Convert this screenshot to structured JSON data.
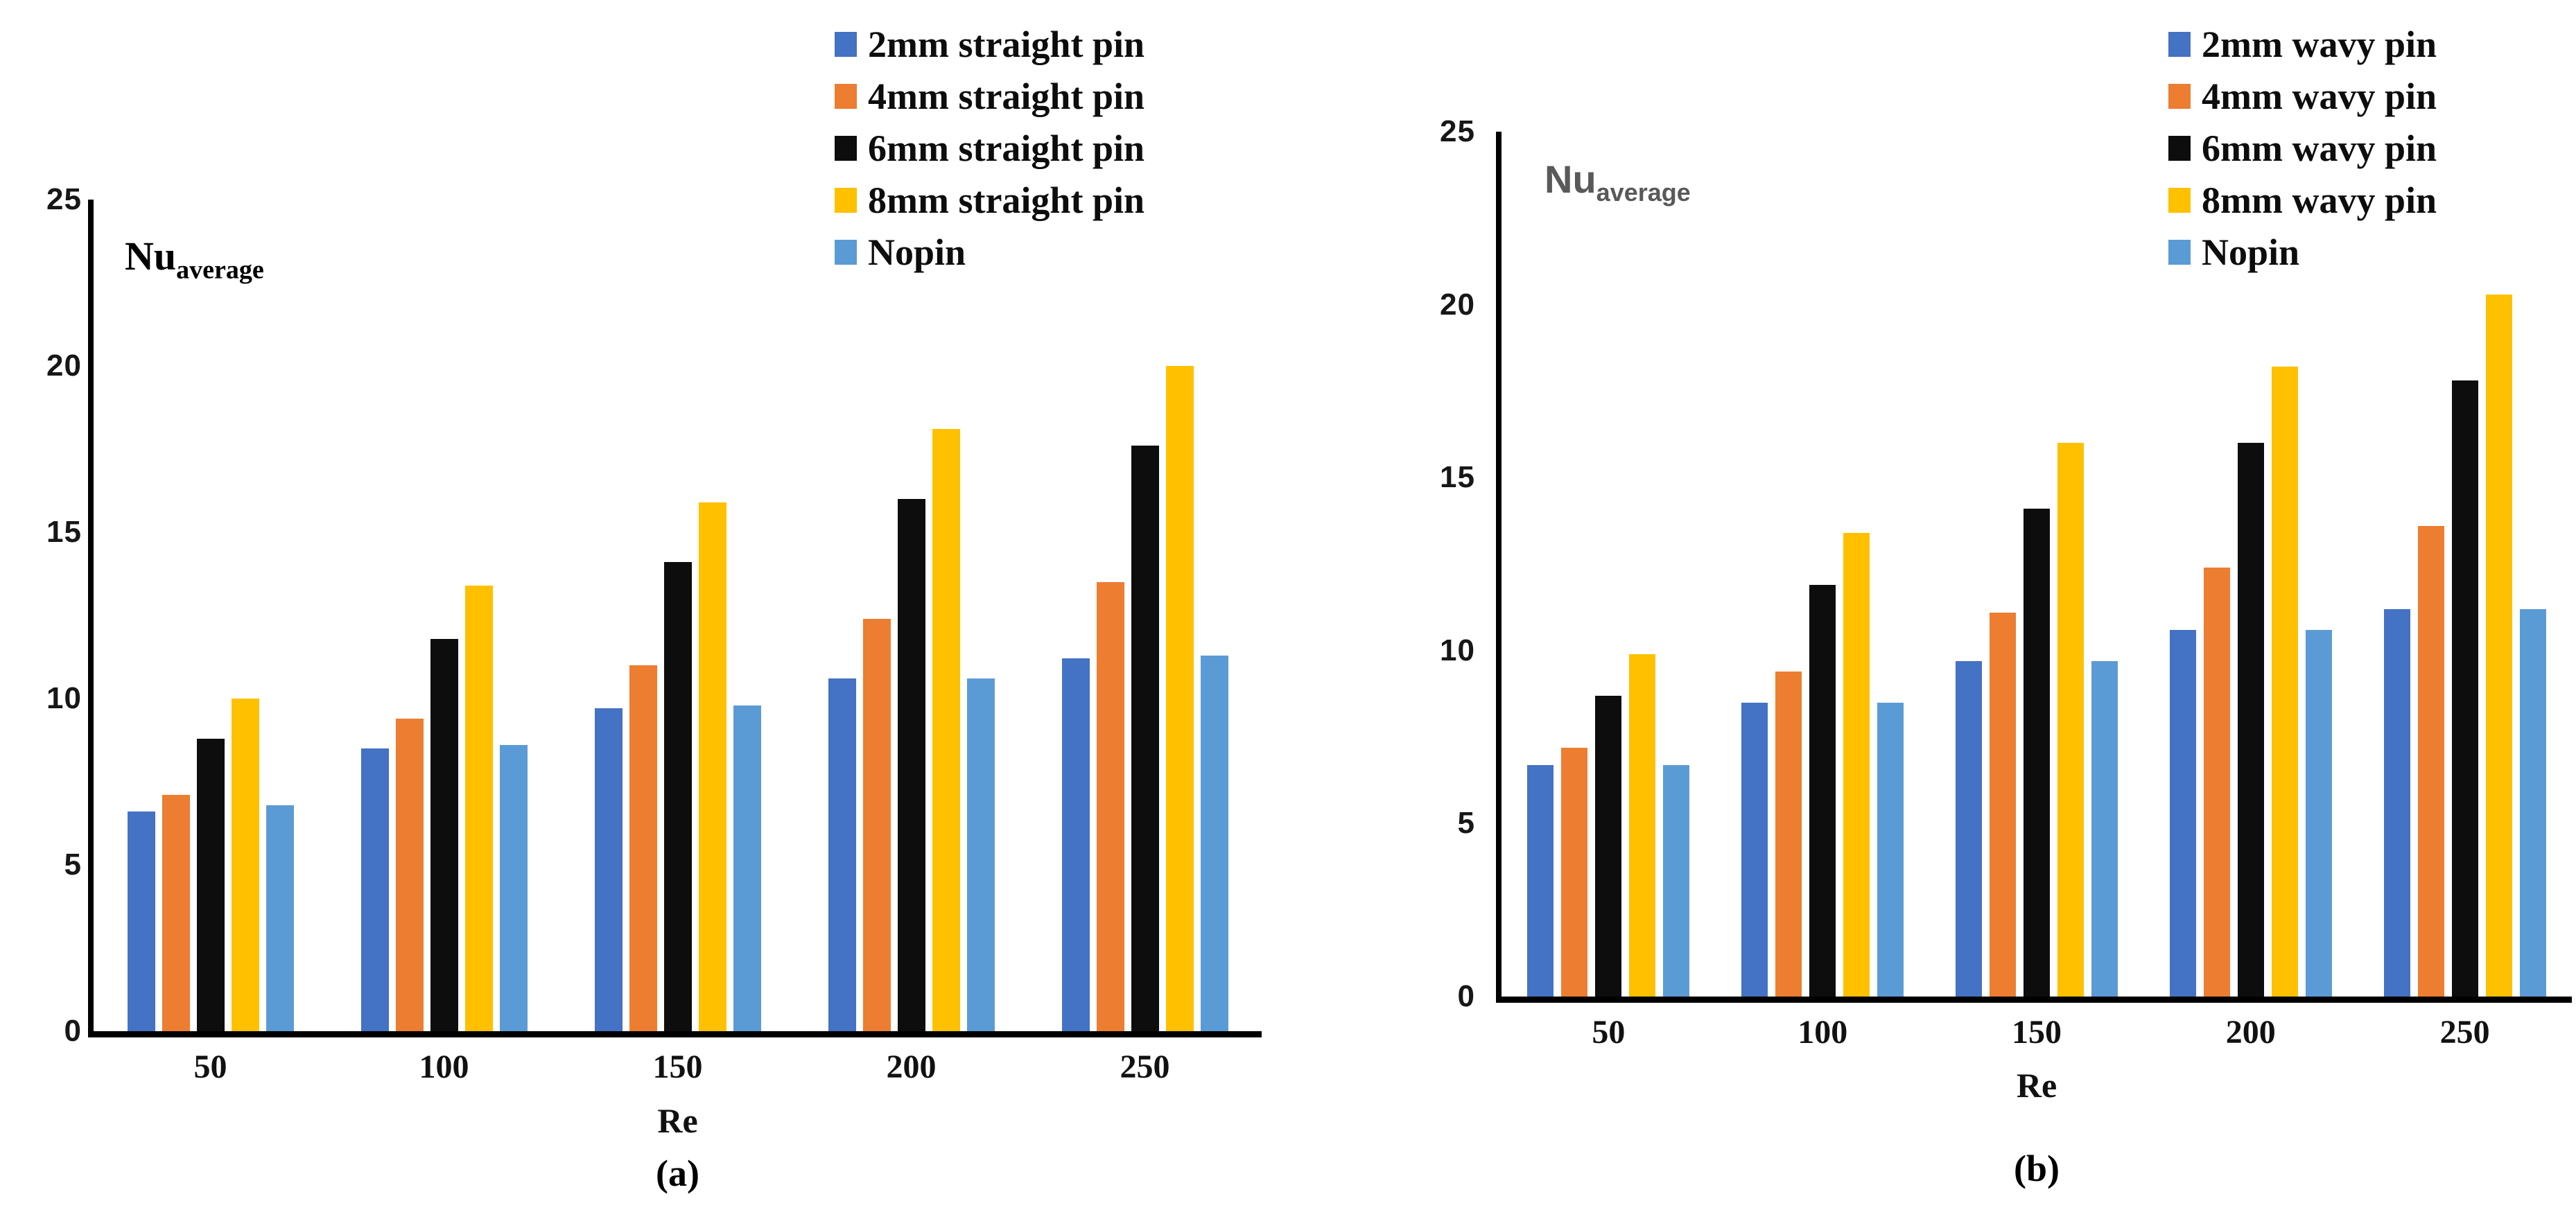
{
  "chart_data": [
    {
      "type": "bar",
      "panel_caption": "(a)",
      "ylabel_base": "Nu",
      "ylabel_sub": "average",
      "xlabel": "Re",
      "ylim": [
        0,
        25
      ],
      "y_ticks": [
        25,
        20,
        15,
        10,
        5,
        0
      ],
      "categories": [
        "50",
        "100",
        "150",
        "200",
        "250"
      ],
      "grid": false,
      "legend_position": "top-right-of-plot",
      "series": [
        {
          "name": "2mm straight pin",
          "color": "#4472C4",
          "values": [
            6.6,
            8.5,
            9.7,
            10.6,
            11.2
          ]
        },
        {
          "name": "4mm straight pin",
          "color": "#ED7D31",
          "values": [
            7.1,
            9.4,
            11.0,
            12.4,
            13.5
          ]
        },
        {
          "name": "6mm straight pin",
          "color": "#0D0D0D",
          "values": [
            8.8,
            11.8,
            14.1,
            16.0,
            17.6
          ]
        },
        {
          "name": "8mm straight pin",
          "color": "#FFC000",
          "values": [
            10.0,
            13.4,
            15.9,
            18.1,
            20.0
          ]
        },
        {
          "name": "Nopin",
          "color": "#5B9BD5",
          "values": [
            6.8,
            8.6,
            9.8,
            10.6,
            11.3
          ]
        }
      ]
    },
    {
      "type": "bar",
      "panel_caption": "(b)",
      "ylabel_base": "Nu",
      "ylabel_sub": "average",
      "xlabel": "Re",
      "ylim": [
        0,
        25
      ],
      "y_ticks": [
        25,
        20,
        15,
        10,
        5,
        0
      ],
      "categories": [
        "50",
        "100",
        "150",
        "200",
        "250"
      ],
      "grid": false,
      "legend_position": "top-right-of-plot",
      "series": [
        {
          "name": "2mm wavy pin",
          "color": "#4472C4",
          "values": [
            6.7,
            8.5,
            9.7,
            10.6,
            11.2
          ]
        },
        {
          "name": "4mm wavy pin",
          "color": "#ED7D31",
          "values": [
            7.2,
            9.4,
            11.1,
            12.4,
            13.6
          ]
        },
        {
          "name": "6mm wavy pin",
          "color": "#0D0D0D",
          "values": [
            8.7,
            11.9,
            14.1,
            16.0,
            17.8
          ]
        },
        {
          "name": "8mm wavy pin",
          "color": "#FFC000",
          "values": [
            9.9,
            13.4,
            16.0,
            18.2,
            20.3
          ]
        },
        {
          "name": "Nopin",
          "color": "#5B9BD5",
          "values": [
            6.7,
            8.5,
            9.7,
            10.6,
            11.2
          ]
        }
      ]
    }
  ]
}
